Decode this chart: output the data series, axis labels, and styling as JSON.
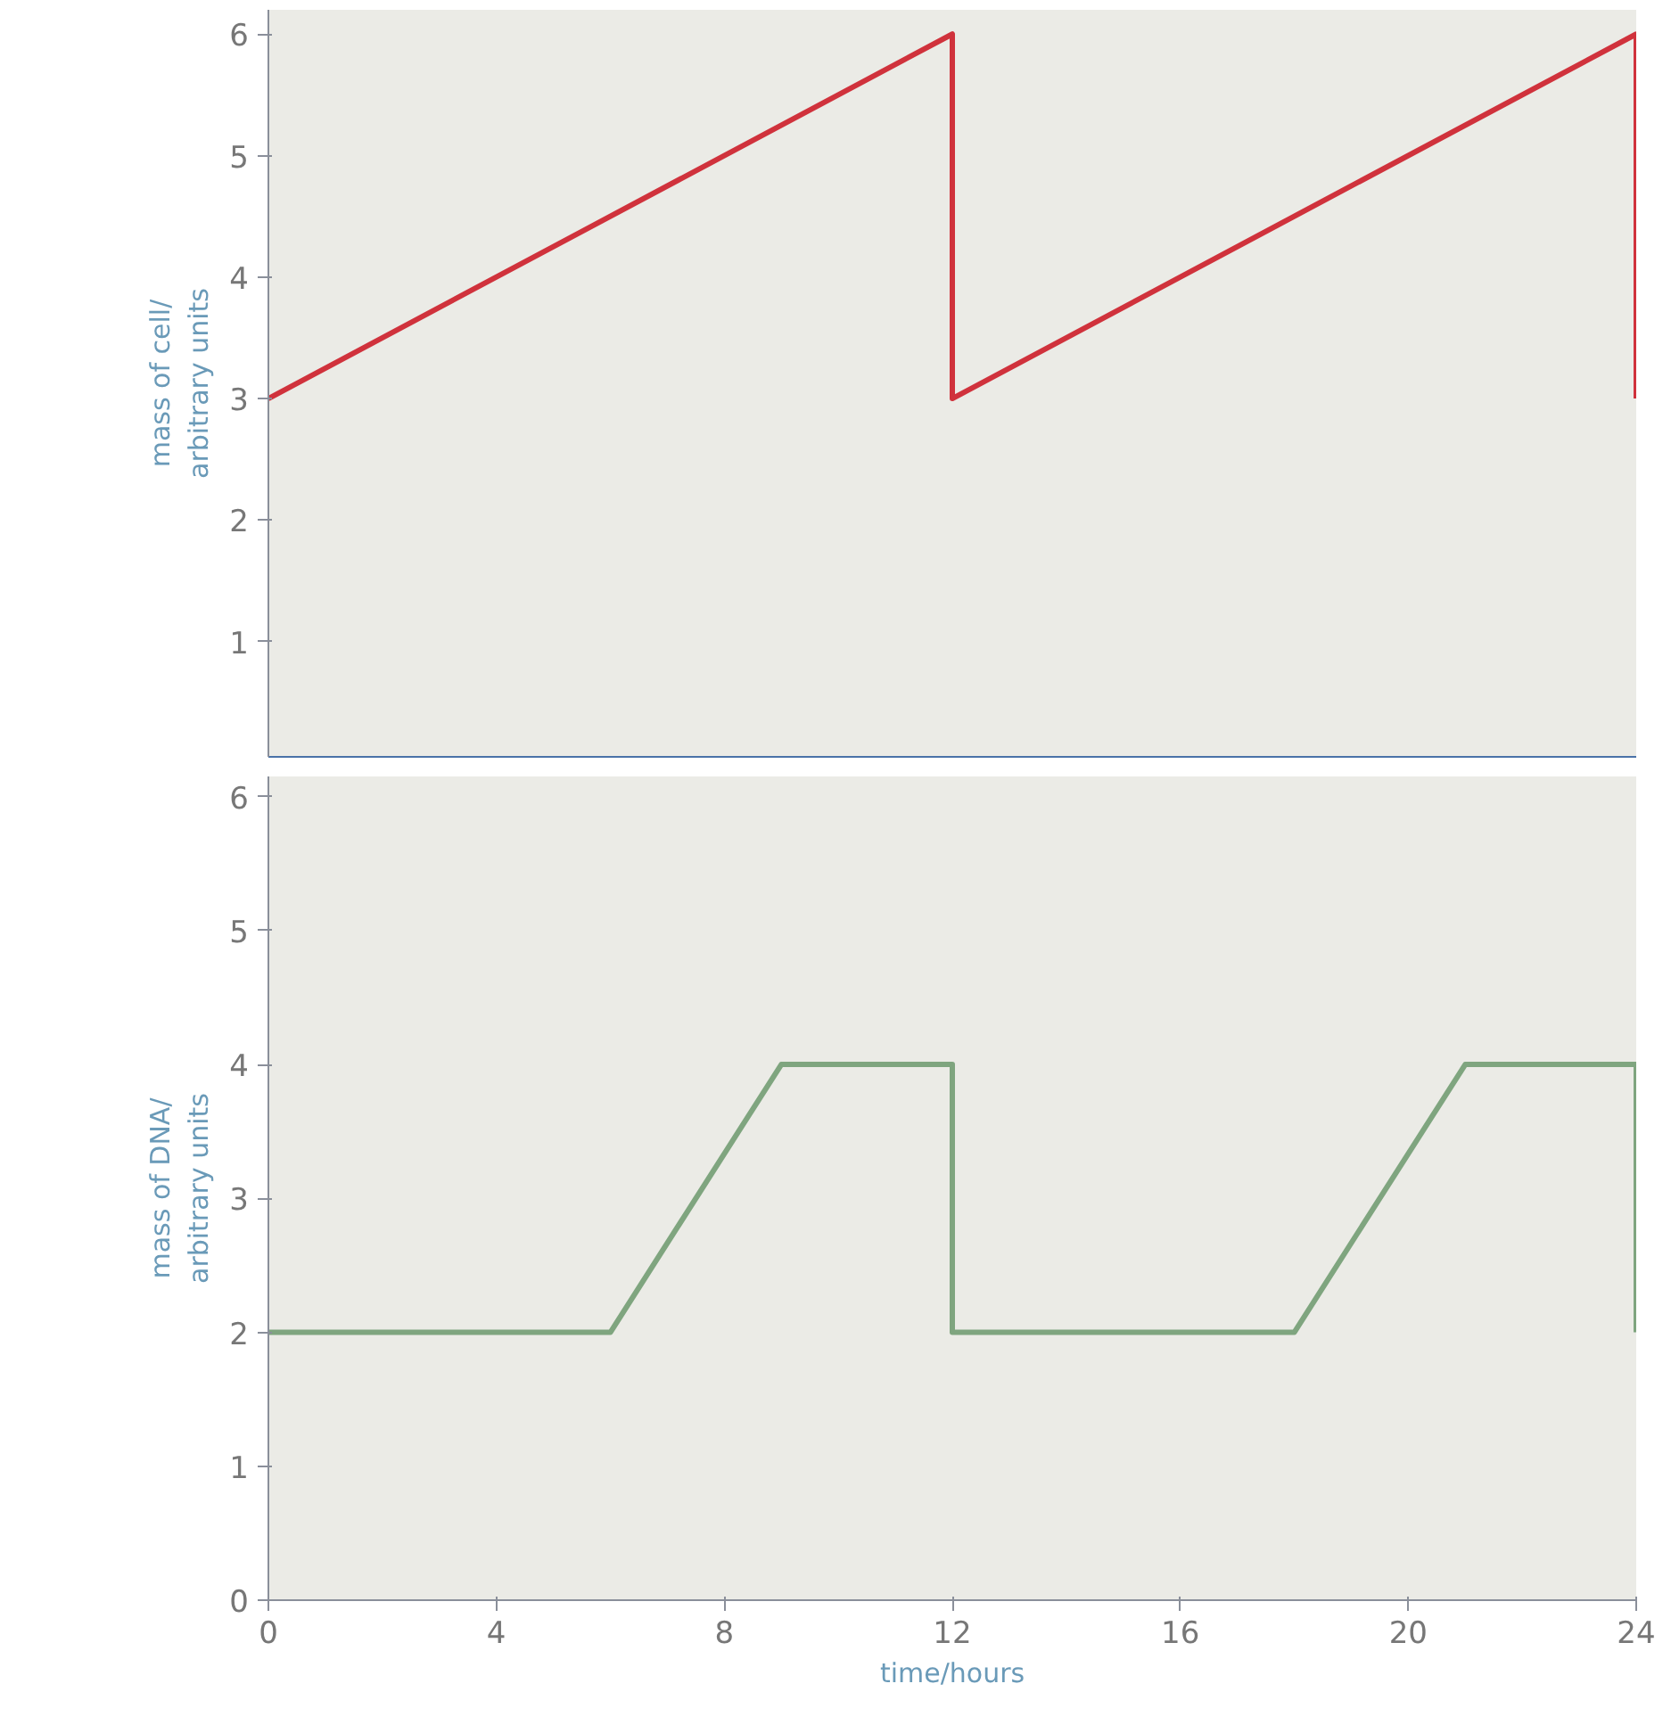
{
  "chart_data": [
    {
      "type": "line",
      "ylabel": "mass of cell/\narbitrary units",
      "x": [
        0,
        12,
        12,
        24,
        24
      ],
      "xlim": [
        0,
        24
      ],
      "xticks": [
        0,
        4,
        8,
        12,
        16,
        20,
        24
      ],
      "ylim": [
        0.05,
        6.2
      ],
      "yticks": [
        1,
        2,
        3,
        4,
        5,
        6
      ],
      "tick_labels": "y",
      "grid": false,
      "series": [
        {
          "color": "#d0323c",
          "values": [
            3,
            6,
            3,
            6,
            3
          ]
        }
      ]
    },
    {
      "type": "line",
      "xlabel": "time/hours",
      "ylabel": "mass of DNA/\narbitrary units",
      "x": [
        0,
        6,
        9,
        12,
        12,
        18,
        21,
        24,
        24
      ],
      "xlim": [
        0,
        24
      ],
      "xticks": [
        0,
        4,
        8,
        12,
        16,
        20,
        24
      ],
      "ylim": [
        0,
        6.15
      ],
      "yticks": [
        0,
        1,
        2,
        3,
        4,
        5,
        6
      ],
      "grid": false,
      "series": [
        {
          "color": "#7fa57f",
          "values": [
            2,
            2,
            4,
            4,
            2,
            2,
            4,
            4,
            2
          ]
        }
      ]
    }
  ]
}
